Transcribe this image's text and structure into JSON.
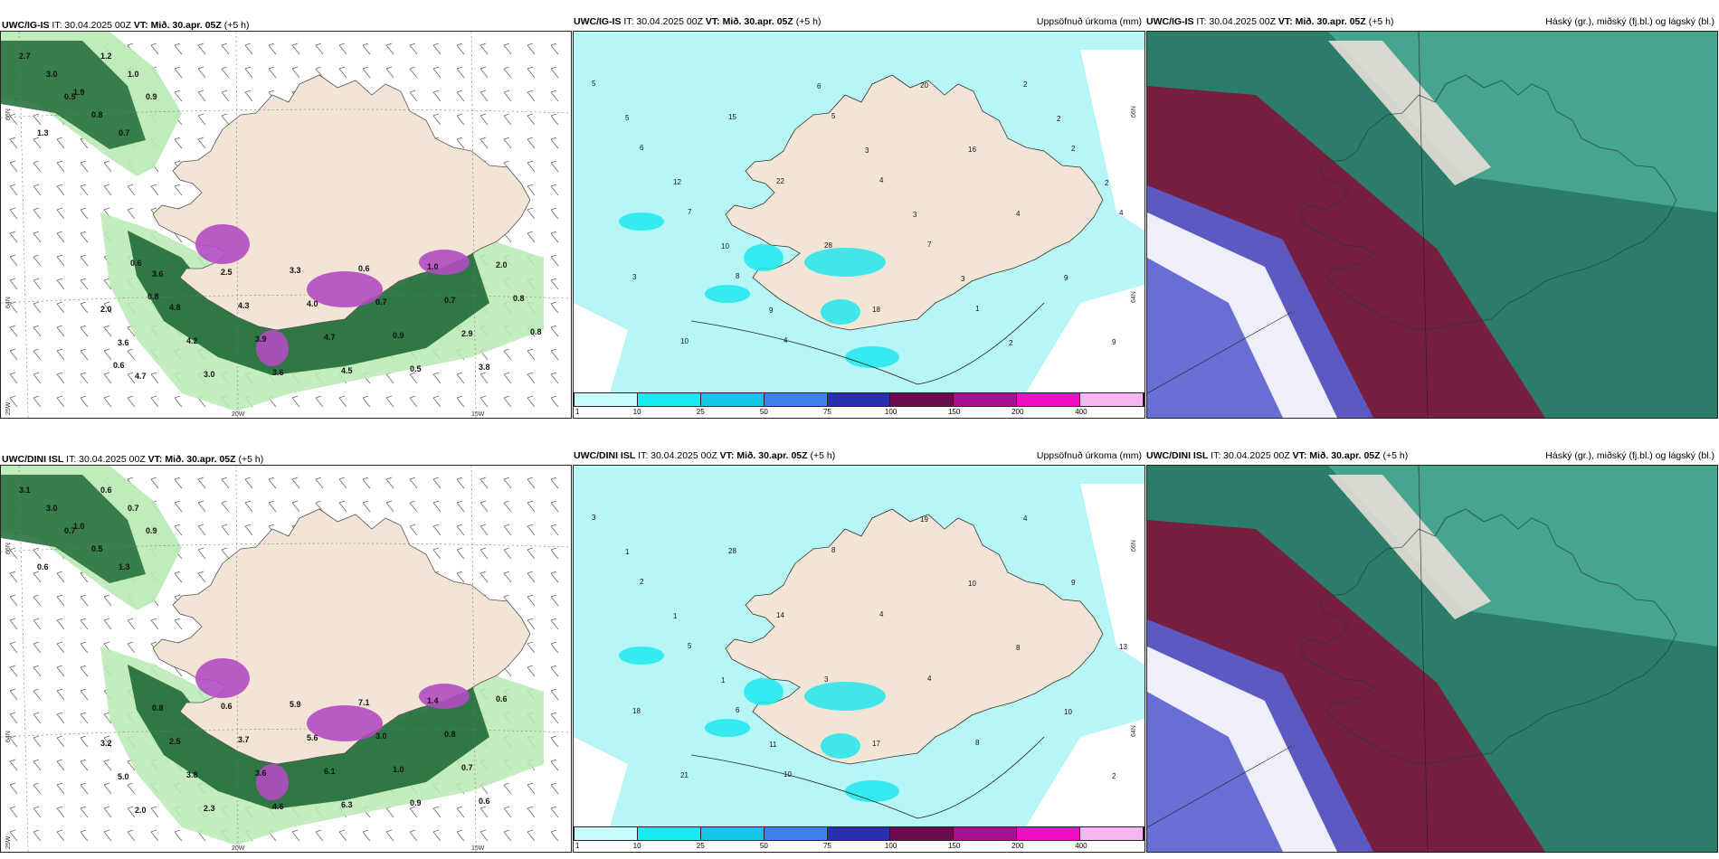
{
  "rows": [
    {
      "panels": [
        {
          "type": "wind",
          "model": "UWC/IG-IS",
          "init": "IT: 30.04.2025 00Z",
          "valid_label": "VT:",
          "valid": "Mið. 30.apr. 05Z",
          "lead": "(+5 h)",
          "right_title": "",
          "axis_labels": [
            "66N",
            "64N",
            "25W",
            "20W",
            "15W"
          ],
          "values": [
            "2.7",
            "3.0",
            "1.9",
            "1.2",
            "1.0",
            "1.3",
            "0.5",
            "0.8",
            "0.7",
            "0.9",
            "2.0",
            "3.6",
            "4.7",
            "3.6",
            "4.8",
            "4.2",
            "3.0",
            "2.5",
            "4.3",
            "3.9",
            "3.6",
            "3.3",
            "4.0",
            "4.7",
            "4.5",
            "0.6",
            "0.7",
            "0.9",
            "0.5",
            "1.0",
            "0.7",
            "2.9",
            "3.8",
            "2.0",
            "0.8",
            "0.8",
            "0.6",
            "0.6",
            "0.8"
          ]
        },
        {
          "type": "precip",
          "model": "UWC/IG-IS",
          "init": "IT: 30.04.2025 00Z",
          "valid_label": "VT:",
          "valid": "Mið. 30.apr. 05Z",
          "lead": "(+5 h)",
          "right_title": "Uppsöfnuð úrkoma (mm)",
          "axis_labels": [
            "66N",
            "64N"
          ],
          "values": [
            "5",
            "6",
            "7",
            "8",
            "4",
            "5",
            "4",
            "7",
            "1",
            "2",
            "2",
            "4",
            "3",
            "10",
            "15",
            "22",
            "28",
            "18",
            "20",
            "16",
            "4",
            "9",
            "9",
            "5",
            "12",
            "10",
            "9",
            "6",
            "3",
            "3",
            "3",
            "2",
            "2",
            "2"
          ]
        },
        {
          "type": "cloud",
          "model": "UWC/IG-IS",
          "init": "IT: 30.04.2025 00Z",
          "valid_label": "VT:",
          "valid": "Mið. 30.apr. 05Z",
          "lead": "(+5 h)",
          "right_title": "Háský (gr.), miðský (fj.bl.) og lágský (bl.)"
        }
      ]
    },
    {
      "panels": [
        {
          "type": "wind",
          "model": "UWC/DINI ISL",
          "init": "IT: 30.04.2025 00Z",
          "valid_label": "VT:",
          "valid": "Mið. 30.apr. 05Z",
          "lead": "(+5 h)",
          "right_title": "",
          "axis_labels": [
            "66N",
            "64N",
            "25W",
            "20W",
            "15W"
          ],
          "values": [
            "3.1",
            "3.0",
            "1.0",
            "0.6",
            "0.7",
            "0.6",
            "0.7",
            "0.5",
            "1.3",
            "0.9",
            "3.2",
            "5.0",
            "2.0",
            "0.8",
            "2.5",
            "3.8",
            "2.3",
            "0.6",
            "3.7",
            "3.6",
            "4.6",
            "5.9",
            "5.6",
            "6.1",
            "6.3",
            "7.1",
            "3.0",
            "1.0",
            "0.9",
            "1.4",
            "0.8",
            "0.7",
            "0.6",
            "0.6"
          ]
        },
        {
          "type": "precip",
          "model": "UWC/DINI ISL",
          "init": "IT: 30.04.2025 00Z",
          "valid_label": "VT:",
          "valid": "Mið. 30.apr. 05Z",
          "lead": "(+5 h)",
          "right_title": "Uppsöfnuð úrkoma (mm)",
          "axis_labels": [
            "66N",
            "64N"
          ],
          "values": [
            "3",
            "2",
            "5",
            "6",
            "10",
            "8",
            "4",
            "4",
            "8",
            "4",
            "9",
            "13",
            "18",
            "21",
            "28",
            "14",
            "3",
            "17",
            "19",
            "10",
            "8",
            "10",
            "2",
            "1",
            "1",
            "1",
            "11"
          ]
        },
        {
          "type": "cloud",
          "model": "UWC/DINI ISL",
          "init": "IT: 30.04.2025 00Z",
          "valid_label": "VT:",
          "valid": "Mið. 30.apr. 05Z",
          "lead": "(+5 h)",
          "right_title": "Háský (gr.), miðský (fj.bl.) og lágský (bl.)"
        }
      ]
    }
  ],
  "colorbar": {
    "ticks": [
      "1",
      "10",
      "25",
      "50",
      "75",
      "100",
      "150",
      "200",
      "400"
    ],
    "colors": [
      "#c8fbfb",
      "#19eaf0",
      "#17c5ea",
      "#3f82ee",
      "#2a2fb0",
      "#6b0a4e",
      "#a80f8e",
      "#f00ec8",
      "#f7b5f3"
    ]
  },
  "palette": {
    "land": "#f3e5d6",
    "precip_light": "#b7f6f7",
    "precip_mid": "#1fe8ef",
    "wind_green": "#1f6b36",
    "wind_light": "#b9e9b4",
    "wind_purple": "#b14bc2",
    "cloud_red": "#7a1a3e",
    "cloud_teal": "#2b7d6a",
    "cloud_blue": "#5a5fd0"
  }
}
